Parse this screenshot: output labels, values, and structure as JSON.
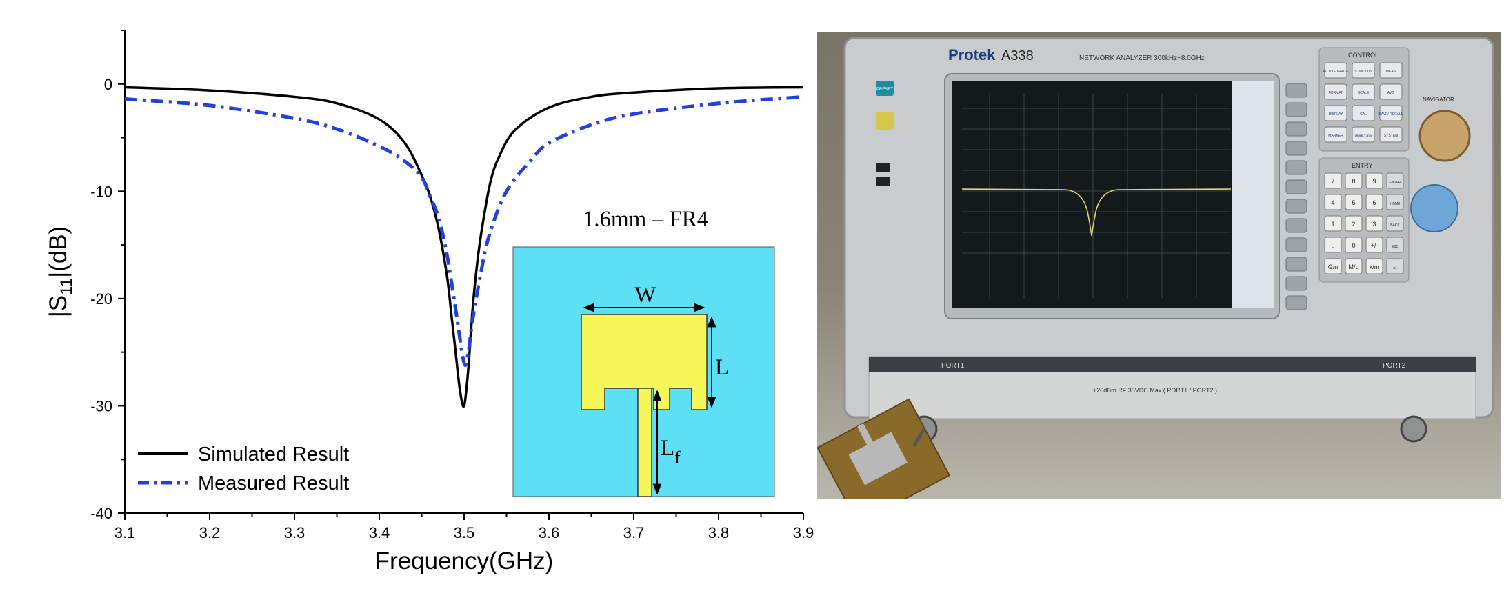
{
  "chart_data": {
    "type": "line",
    "xlabel": "Frequency(GHz)",
    "ylabel_main": "|S",
    "ylabel_sub": "11",
    "ylabel_end": "|(dB)",
    "xlim": [
      3.1,
      3.9
    ],
    "ylim": [
      -40,
      5
    ],
    "x_ticks": [
      "3.1",
      "3.2",
      "3.3",
      "3.4",
      "3.5",
      "3.6",
      "3.7",
      "3.8",
      "3.9"
    ],
    "y_ticks": [
      "0",
      "-10",
      "-20",
      "-30",
      "-40"
    ],
    "series": [
      {
        "name": "Simulated Result",
        "style": "solid",
        "color": "#000000",
        "x": [
          3.1,
          3.2,
          3.3,
          3.35,
          3.4,
          3.43,
          3.45,
          3.46,
          3.47,
          3.48,
          3.485,
          3.49,
          3.495,
          3.5,
          3.505,
          3.51,
          3.515,
          3.52,
          3.53,
          3.54,
          3.56,
          3.6,
          3.65,
          3.7,
          3.8,
          3.9
        ],
        "y": [
          -0.3,
          -0.6,
          -1.2,
          -1.8,
          -3.3,
          -5.5,
          -8.5,
          -10.5,
          -13.5,
          -18.0,
          -21.5,
          -25.0,
          -28.5,
          -30.0,
          -26.5,
          -21.0,
          -17.0,
          -14.0,
          -9.5,
          -7.0,
          -4.3,
          -2.2,
          -1.2,
          -0.8,
          -0.4,
          -0.3
        ]
      },
      {
        "name": "Measured Result",
        "style": "dashdot",
        "color": "#2040e0",
        "x": [
          3.1,
          3.2,
          3.3,
          3.35,
          3.4,
          3.43,
          3.45,
          3.46,
          3.47,
          3.48,
          3.49,
          3.5,
          3.505,
          3.51,
          3.52,
          3.53,
          3.55,
          3.58,
          3.6,
          3.65,
          3.7,
          3.8,
          3.9
        ],
        "y": [
          -1.4,
          -2.0,
          -3.2,
          -4.2,
          -5.8,
          -7.2,
          -8.7,
          -10.5,
          -12.5,
          -16.0,
          -21.0,
          -26.0,
          -25.0,
          -22.0,
          -17.5,
          -14.0,
          -10.0,
          -7.0,
          -5.5,
          -3.8,
          -2.8,
          -1.8,
          -1.2
        ]
      }
    ],
    "legend": "bottom-left",
    "grid": false
  },
  "inset": {
    "title": "1.6mm – FR4",
    "label_w": "W",
    "label_l": "L",
    "label_lf_main": "L",
    "label_lf_sub": "f",
    "colors": {
      "substrate": "#5de0f5",
      "patch": "#f7f75a"
    }
  },
  "photo": {
    "brand": "Protek",
    "model": "A338",
    "model_desc": "NETWORK ANALYZER 300kHz~8.0GHz",
    "control_label": "CONTROL",
    "entry_label": "ENTRY",
    "navigator_label": "NAVIGATOR",
    "preset_label": "PRESET",
    "port1_label": "PORT1",
    "port2_label": "PORT2",
    "warning_text": "+20dBm RF 35VDC Max ( PORT1 / PORT2 )",
    "control_keys": [
      "ACTIVE TRACE",
      "STIMULUS",
      "MEAS",
      "FORMAT",
      "SCALE",
      "AVG",
      "DISPLAY",
      "CAL",
      "SAVE/ RECALL",
      "MARKER",
      "ANALYSIS",
      "SYSTEM"
    ],
    "entry_keys": [
      "7",
      "8",
      "9",
      "ENTER",
      "4",
      "5",
      "6",
      "HOME",
      "1",
      "2",
      "3",
      "BACK",
      ".",
      "0",
      "+/-",
      "ESC",
      "G/n",
      "M/μ",
      "k/m",
      "x1"
    ]
  }
}
